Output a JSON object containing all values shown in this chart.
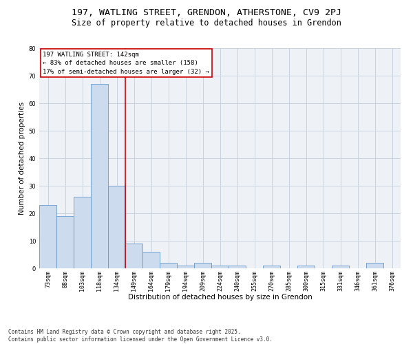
{
  "title1": "197, WATLING STREET, GRENDON, ATHERSTONE, CV9 2PJ",
  "title2": "Size of property relative to detached houses in Grendon",
  "xlabel": "Distribution of detached houses by size in Grendon",
  "ylabel": "Number of detached properties",
  "bar_color": "#ccdcee",
  "bar_edge_color": "#6699cc",
  "bar_categories": [
    "73sqm",
    "88sqm",
    "103sqm",
    "118sqm",
    "134sqm",
    "149sqm",
    "164sqm",
    "179sqm",
    "194sqm",
    "209sqm",
    "224sqm",
    "240sqm",
    "255sqm",
    "270sqm",
    "285sqm",
    "300sqm",
    "315sqm",
    "331sqm",
    "346sqm",
    "361sqm",
    "376sqm"
  ],
  "bar_values": [
    23,
    19,
    26,
    67,
    30,
    9,
    6,
    2,
    1,
    2,
    1,
    1,
    0,
    1,
    0,
    1,
    0,
    1,
    0,
    2,
    0
  ],
  "vline_x": 4.5,
  "vline_color": "#cc0000",
  "annotation_line1": "197 WATLING STREET: 142sqm",
  "annotation_line2": "← 83% of detached houses are smaller (158)",
  "annotation_line3": "17% of semi-detached houses are larger (32) →",
  "annotation_box_color": "#cc0000",
  "ylim": [
    0,
    80
  ],
  "yticks": [
    0,
    10,
    20,
    30,
    40,
    50,
    60,
    70,
    80
  ],
  "grid_color": "#c8d4e0",
  "bg_color": "#eef2f7",
  "footer": "Contains HM Land Registry data © Crown copyright and database right 2025.\nContains public sector information licensed under the Open Government Licence v3.0.",
  "title_fontsize": 9.5,
  "subtitle_fontsize": 8.5,
  "annotation_fontsize": 6.5,
  "axis_label_fontsize": 7.5,
  "tick_fontsize": 6,
  "footer_fontsize": 5.5
}
